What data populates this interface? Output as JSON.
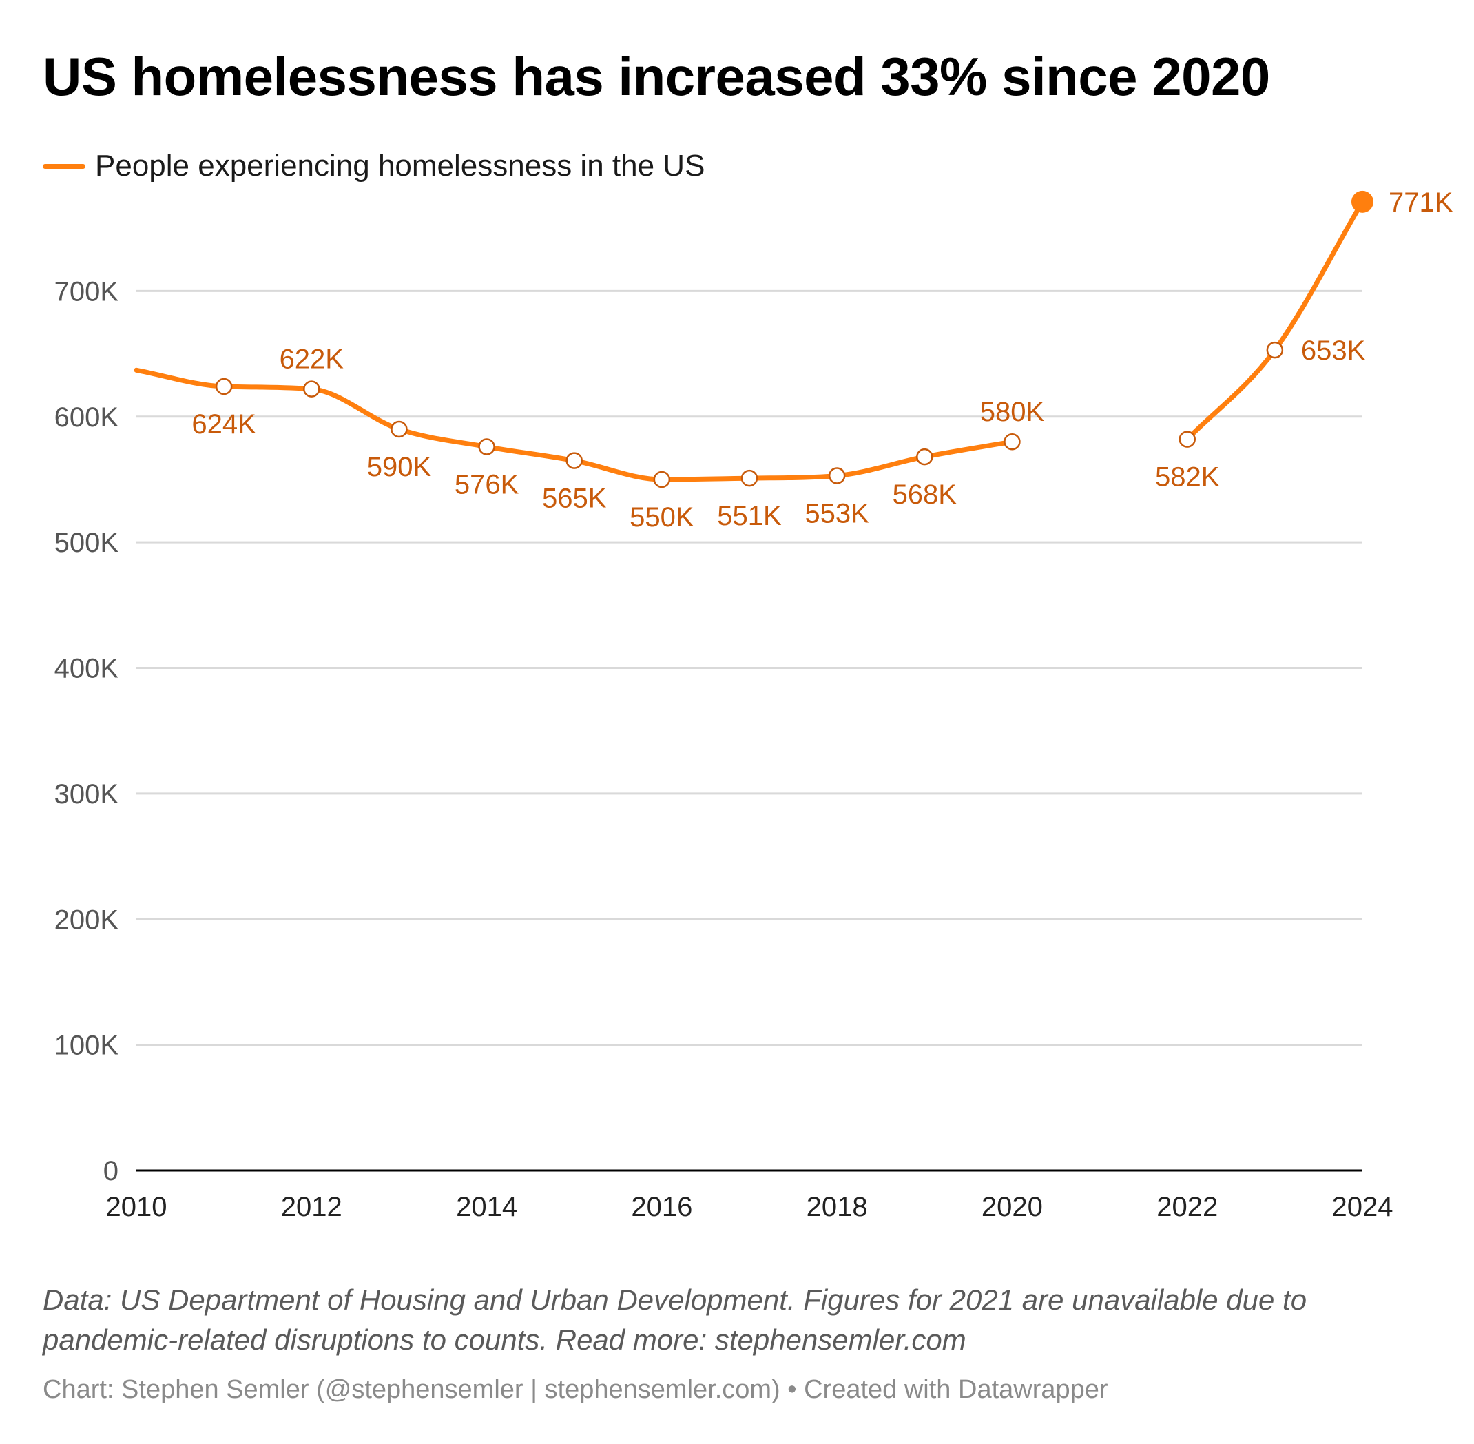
{
  "title": "US homelessness has increased 33% since 2020",
  "legend": {
    "label": "People experiencing homelessness in the US"
  },
  "colors": {
    "line": "#FF7F0E",
    "label": "#C85A0A",
    "grid": "#D9D9D9",
    "axis": "#000000"
  },
  "chart_data": {
    "type": "line",
    "title": "US homelessness has increased 33% since 2020",
    "xlabel": "",
    "ylabel": "",
    "xlim": [
      2010,
      2024
    ],
    "ylim": [
      0,
      800000
    ],
    "grid": true,
    "legend_position": "top-left",
    "x_ticks": [
      2010,
      2012,
      2014,
      2016,
      2018,
      2020,
      2022,
      2024
    ],
    "x_tick_labels": [
      "2010",
      "2012",
      "2014",
      "2016",
      "2018",
      "2020",
      "2022",
      "2024"
    ],
    "y_ticks": [
      0,
      100000,
      200000,
      300000,
      400000,
      500000,
      600000,
      700000
    ],
    "y_tick_labels": [
      "0",
      "100K",
      "200K",
      "300K",
      "400K",
      "500K",
      "600K",
      "700K"
    ],
    "series": [
      {
        "name": "People experiencing homelessness in the US",
        "x": [
          2010,
          2011,
          2012,
          2013,
          2014,
          2015,
          2016,
          2017,
          2018,
          2019,
          2020,
          2021,
          2022,
          2023,
          2024
        ],
        "values": [
          637000,
          624000,
          622000,
          590000,
          576000,
          565000,
          550000,
          551000,
          553000,
          568000,
          580000,
          null,
          582000,
          653000,
          771000
        ],
        "labels": [
          "",
          "624K",
          "622K",
          "590K",
          "576K",
          "565K",
          "550K",
          "551K",
          "553K",
          "568K",
          "580K",
          "",
          "582K",
          "653K",
          "771K"
        ],
        "label_pos": [
          "",
          "below",
          "above",
          "below",
          "below",
          "below",
          "below",
          "below",
          "below",
          "below",
          "above",
          "",
          "below",
          "right",
          "right"
        ]
      }
    ]
  },
  "footer": {
    "note": "Data: US Department of Housing and Urban Development. Figures for 2021 are unavailable due to pandemic-related disruptions to counts. Read more: stephensemler.com",
    "credit": "Chart: Stephen Semler (@stephensemler | stephensemler.com) • Created with Datawrapper"
  }
}
